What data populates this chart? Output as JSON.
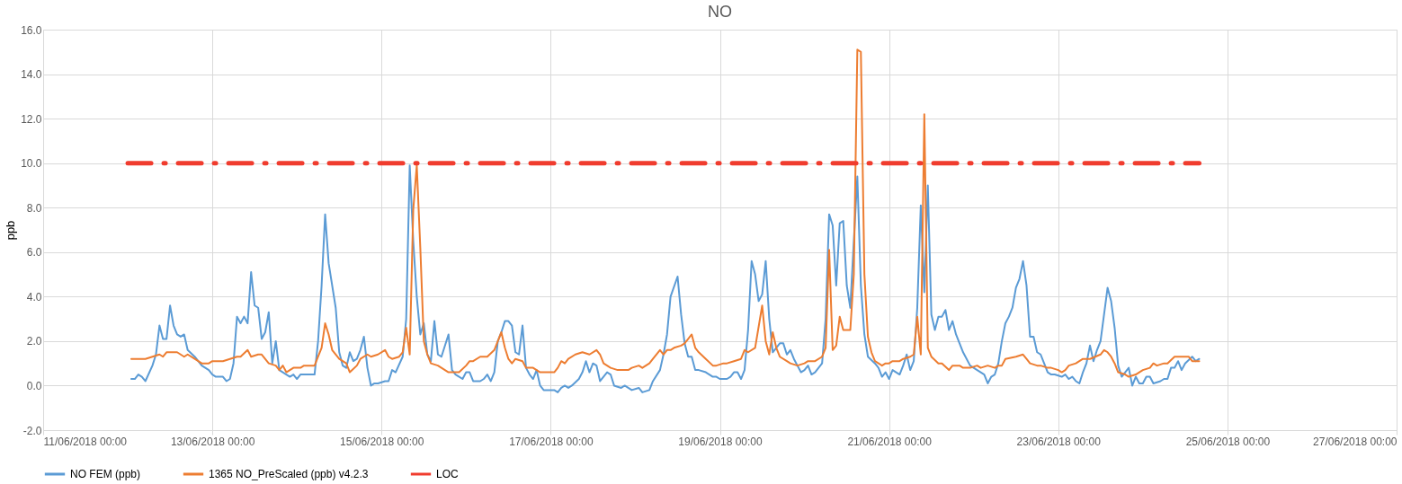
{
  "chart_data": {
    "type": "line",
    "title": "NO",
    "ylabel": "ppb",
    "ylim": [
      -2,
      16
    ],
    "yticks": [
      {
        "value": -2,
        "label": "-2.0"
      },
      {
        "value": 0,
        "label": "0.0"
      },
      {
        "value": 2,
        "label": "2.0"
      },
      {
        "value": 4,
        "label": "4.0"
      },
      {
        "value": 6,
        "label": "6.0"
      },
      {
        "value": 8,
        "label": "8.0"
      },
      {
        "value": 10,
        "label": "10.0"
      },
      {
        "value": 12,
        "label": "12.0"
      },
      {
        "value": 14,
        "label": "14.0"
      },
      {
        "value": 16,
        "label": "16.0"
      }
    ],
    "xlim": [
      "2018-06-11T00:00",
      "2018-06-27T00:00"
    ],
    "xticks": [
      {
        "value": "2018-06-11T00:00",
        "label": "11/06/2018 00:00"
      },
      {
        "value": "2018-06-13T00:00",
        "label": "13/06/2018 00:00"
      },
      {
        "value": "2018-06-15T00:00",
        "label": "15/06/2018 00:00"
      },
      {
        "value": "2018-06-17T00:00",
        "label": "17/06/2018 00:00"
      },
      {
        "value": "2018-06-19T00:00",
        "label": "19/06/2018 00:00"
      },
      {
        "value": "2018-06-21T00:00",
        "label": "21/06/2018 00:00"
      },
      {
        "value": "2018-06-23T00:00",
        "label": "23/06/2018 00:00"
      },
      {
        "value": "2018-06-25T00:00",
        "label": "25/06/2018 00:00"
      },
      {
        "value": "2018-06-27T00:00",
        "label": "27/06/2018 00:00"
      }
    ],
    "grid": true,
    "legend": "bottom",
    "marker": "none",
    "series": [
      {
        "name": "NO FEM (ppb)",
        "color": "#5b9bd5",
        "line_style": "solid",
        "x": [
          "2018-06-12T01:00",
          "2018-06-12T02:00",
          "2018-06-12T03:00",
          "2018-06-12T04:00",
          "2018-06-12T05:00",
          "2018-06-12T07:00",
          "2018-06-12T08:00",
          "2018-06-12T09:00",
          "2018-06-12T10:00",
          "2018-06-12T11:00",
          "2018-06-12T12:00",
          "2018-06-12T13:00",
          "2018-06-12T14:00",
          "2018-06-12T15:00",
          "2018-06-12T16:00",
          "2018-06-12T17:00",
          "2018-06-12T19:00",
          "2018-06-12T21:00",
          "2018-06-12T23:00",
          "2018-06-13T00:00",
          "2018-06-13T01:00",
          "2018-06-13T03:00",
          "2018-06-13T04:00",
          "2018-06-13T05:00",
          "2018-06-13T06:00",
          "2018-06-13T07:00",
          "2018-06-13T08:00",
          "2018-06-13T09:00",
          "2018-06-13T10:00",
          "2018-06-13T11:00",
          "2018-06-13T12:00",
          "2018-06-13T13:00",
          "2018-06-13T14:00",
          "2018-06-13T15:00",
          "2018-06-13T16:00",
          "2018-06-13T17:00",
          "2018-06-13T18:00",
          "2018-06-13T19:00",
          "2018-06-13T20:00",
          "2018-06-13T22:00",
          "2018-06-13T23:00",
          "2018-06-14T00:00",
          "2018-06-14T01:00",
          "2018-06-14T03:00",
          "2018-06-14T05:00",
          "2018-06-14T06:00",
          "2018-06-14T07:00",
          "2018-06-14T08:00",
          "2018-06-14T09:00",
          "2018-06-14T11:00",
          "2018-06-14T12:00",
          "2018-06-14T13:00",
          "2018-06-14T14:00",
          "2018-06-14T15:00",
          "2018-06-14T16:00",
          "2018-06-14T17:00",
          "2018-06-14T18:00",
          "2018-06-14T19:00",
          "2018-06-14T20:00",
          "2018-06-14T21:00",
          "2018-06-14T22:00",
          "2018-06-14T23:00",
          "2018-06-15T01:00",
          "2018-06-15T02:00",
          "2018-06-15T03:00",
          "2018-06-15T04:00",
          "2018-06-15T06:00",
          "2018-06-15T07:00",
          "2018-06-15T08:00",
          "2018-06-15T09:00",
          "2018-06-15T10:00",
          "2018-06-15T11:00",
          "2018-06-15T12:00",
          "2018-06-15T13:00",
          "2018-06-15T14:00",
          "2018-06-15T15:00",
          "2018-06-15T16:00",
          "2018-06-15T17:00",
          "2018-06-15T19:00",
          "2018-06-15T20:00",
          "2018-06-15T21:00",
          "2018-06-15T23:00",
          "2018-06-16T00:00",
          "2018-06-16T01:00",
          "2018-06-16T02:00",
          "2018-06-16T04:00",
          "2018-06-16T05:00",
          "2018-06-16T06:00",
          "2018-06-16T07:00",
          "2018-06-16T08:00",
          "2018-06-16T09:00",
          "2018-06-16T10:00",
          "2018-06-16T11:00",
          "2018-06-16T12:00",
          "2018-06-16T13:00",
          "2018-06-16T14:00",
          "2018-06-16T15:00",
          "2018-06-16T16:00",
          "2018-06-16T17:00",
          "2018-06-16T18:00",
          "2018-06-16T19:00",
          "2018-06-16T20:00",
          "2018-06-16T21:00",
          "2018-06-16T22:00",
          "2018-06-16T23:00",
          "2018-06-17T01:00",
          "2018-06-17T02:00",
          "2018-06-17T03:00",
          "2018-06-17T04:00",
          "2018-06-17T05:00",
          "2018-06-17T06:00",
          "2018-06-17T08:00",
          "2018-06-17T09:00",
          "2018-06-17T10:00",
          "2018-06-17T11:00",
          "2018-06-17T12:00",
          "2018-06-17T13:00",
          "2018-06-17T14:00",
          "2018-06-17T16:00",
          "2018-06-17T17:00",
          "2018-06-17T18:00",
          "2018-06-17T20:00",
          "2018-06-17T21:00",
          "2018-06-17T23:00",
          "2018-06-18T01:00",
          "2018-06-18T02:00",
          "2018-06-18T04:00",
          "2018-06-18T05:00",
          "2018-06-18T07:00",
          "2018-06-18T08:00",
          "2018-06-18T09:00",
          "2018-06-18T10:00",
          "2018-06-18T12:00",
          "2018-06-18T13:00",
          "2018-06-18T14:00",
          "2018-06-18T15:00",
          "2018-06-18T16:00",
          "2018-06-18T17:00",
          "2018-06-18T18:00",
          "2018-06-18T20:00",
          "2018-06-18T22:00",
          "2018-06-18T23:00",
          "2018-06-19T00:00",
          "2018-06-19T02:00",
          "2018-06-19T03:00",
          "2018-06-19T04:00",
          "2018-06-19T05:00",
          "2018-06-19T06:00",
          "2018-06-19T07:00",
          "2018-06-19T08:00",
          "2018-06-19T09:00",
          "2018-06-19T10:00",
          "2018-06-19T11:00",
          "2018-06-19T12:00",
          "2018-06-19T13:00",
          "2018-06-19T14:00",
          "2018-06-19T15:00",
          "2018-06-19T16:00",
          "2018-06-19T17:00",
          "2018-06-19T18:00",
          "2018-06-19T19:00",
          "2018-06-19T20:00",
          "2018-06-19T21:00",
          "2018-06-19T22:00",
          "2018-06-19T23:00",
          "2018-06-20T00:00",
          "2018-06-20T01:00",
          "2018-06-20T02:00",
          "2018-06-20T03:00",
          "2018-06-20T04:00",
          "2018-06-20T05:00",
          "2018-06-20T06:00",
          "2018-06-20T07:00",
          "2018-06-20T08:00",
          "2018-06-20T09:00",
          "2018-06-20T10:00",
          "2018-06-20T11:00",
          "2018-06-20T12:00",
          "2018-06-20T13:00",
          "2018-06-20T14:00",
          "2018-06-20T15:00",
          "2018-06-20T16:00",
          "2018-06-20T17:00",
          "2018-06-20T18:00",
          "2018-06-20T20:00",
          "2018-06-20T21:00",
          "2018-06-20T22:00",
          "2018-06-20T23:00",
          "2018-06-21T00:00",
          "2018-06-21T01:00",
          "2018-06-21T02:00",
          "2018-06-21T03:00",
          "2018-06-21T04:00",
          "2018-06-21T05:00",
          "2018-06-21T06:00",
          "2018-06-21T07:00",
          "2018-06-21T08:00",
          "2018-06-21T09:00",
          "2018-06-21T10:00",
          "2018-06-21T11:00",
          "2018-06-21T12:00",
          "2018-06-21T13:00",
          "2018-06-21T14:00",
          "2018-06-21T15:00",
          "2018-06-21T16:00",
          "2018-06-21T17:00",
          "2018-06-21T18:00",
          "2018-06-21T19:00",
          "2018-06-21T20:00",
          "2018-06-21T21:00",
          "2018-06-21T23:00",
          "2018-06-22T00:00",
          "2018-06-22T02:00",
          "2018-06-22T03:00",
          "2018-06-22T04:00",
          "2018-06-22T05:00",
          "2018-06-22T06:00",
          "2018-06-22T07:00",
          "2018-06-22T08:00",
          "2018-06-22T09:00",
          "2018-06-22T10:00",
          "2018-06-22T11:00",
          "2018-06-22T12:00",
          "2018-06-22T13:00",
          "2018-06-22T14:00",
          "2018-06-22T15:00",
          "2018-06-22T16:00",
          "2018-06-22T17:00",
          "2018-06-22T18:00",
          "2018-06-22T19:00",
          "2018-06-22T20:00",
          "2018-06-22T21:00",
          "2018-06-22T22:00",
          "2018-06-22T23:00",
          "2018-06-23T01:00",
          "2018-06-23T02:00",
          "2018-06-23T03:00",
          "2018-06-23T04:00",
          "2018-06-23T05:00",
          "2018-06-23T06:00",
          "2018-06-23T07:00",
          "2018-06-23T08:00",
          "2018-06-23T09:00",
          "2018-06-23T10:00",
          "2018-06-23T11:00",
          "2018-06-23T12:00",
          "2018-06-23T14:00",
          "2018-06-23T15:00",
          "2018-06-23T16:00",
          "2018-06-23T17:00",
          "2018-06-23T18:00",
          "2018-06-23T19:00",
          "2018-06-23T20:00",
          "2018-06-23T21:00",
          "2018-06-23T22:00",
          "2018-06-23T23:00",
          "2018-06-24T00:00",
          "2018-06-24T01:00",
          "2018-06-24T02:00",
          "2018-06-24T03:00",
          "2018-06-24T05:00",
          "2018-06-24T06:00",
          "2018-06-24T07:00",
          "2018-06-24T08:00",
          "2018-06-24T09:00",
          "2018-06-24T10:00",
          "2018-06-24T11:00",
          "2018-06-24T12:00",
          "2018-06-24T14:00",
          "2018-06-24T15:00",
          "2018-06-24T16:00"
        ],
        "values": [
          0.3,
          0.3,
          0.5,
          0.4,
          0.2,
          0.9,
          1.4,
          2.7,
          2.1,
          2.1,
          3.6,
          2.7,
          2.3,
          2.2,
          2.3,
          1.6,
          1.3,
          0.9,
          0.7,
          0.5,
          0.4,
          0.4,
          0.2,
          0.3,
          1.0,
          3.1,
          2.8,
          3.1,
          2.8,
          5.1,
          3.6,
          3.5,
          2.1,
          2.4,
          3.3,
          1.0,
          2.0,
          0.7,
          0.6,
          0.4,
          0.5,
          0.3,
          0.5,
          0.5,
          0.5,
          2.0,
          4.5,
          7.7,
          5.5,
          3.5,
          1.5,
          0.9,
          0.8,
          1.5,
          1.1,
          1.2,
          1.6,
          2.2,
          0.8,
          0.0,
          0.1,
          0.1,
          0.2,
          0.2,
          0.7,
          0.6,
          1.3,
          3.0,
          9.9,
          6.5,
          4.0,
          2.3,
          2.8,
          1.4,
          1.1,
          2.9,
          1.4,
          1.3,
          2.3,
          0.7,
          0.5,
          0.3,
          0.6,
          0.6,
          0.2,
          0.2,
          0.3,
          0.5,
          0.2,
          0.6,
          2.0,
          2.4,
          2.9,
          2.9,
          2.7,
          1.5,
          1.4,
          2.7,
          0.8,
          0.5,
          0.3,
          0.7,
          0.0,
          -0.2,
          -0.2,
          -0.2,
          -0.3,
          -0.1,
          0.0,
          -0.1,
          0.0,
          0.3,
          0.6,
          1.1,
          0.6,
          1.0,
          0.9,
          0.2,
          0.6,
          0.5,
          0.0,
          -0.1,
          0.0,
          -0.2,
          -0.1,
          -0.3,
          -0.2,
          0.2,
          0.7,
          1.4,
          2.3,
          4.0,
          4.9,
          3.2,
          1.9,
          1.3,
          1.3,
          0.7,
          0.7,
          0.6,
          0.4,
          0.4,
          0.3,
          0.3,
          0.4,
          0.6,
          0.6,
          0.3,
          0.7,
          2.5,
          5.6,
          5.0,
          3.8,
          4.1,
          5.6,
          3.0,
          1.5,
          1.7,
          1.9,
          1.9,
          1.4,
          1.6,
          1.2,
          0.9,
          0.6,
          0.7,
          0.9,
          0.5,
          0.6,
          0.8,
          1.0,
          3.0,
          7.7,
          7.2,
          4.5,
          7.3,
          7.4,
          4.5,
          3.5,
          6.5,
          9.4,
          4.5,
          2.3,
          1.3,
          1.0,
          0.8,
          0.4,
          0.6,
          0.3,
          0.7,
          0.6,
          0.5,
          0.9,
          1.4,
          0.7,
          1.1,
          3.5,
          8.1,
          4.2,
          9.0,
          3.2,
          2.5,
          3.1,
          3.1,
          3.4,
          2.5,
          2.9,
          2.3,
          1.9,
          1.5,
          0.9,
          0.8,
          0.6,
          0.5,
          0.1,
          0.4,
          0.5,
          1.0,
          2.0,
          2.8,
          3.1,
          3.5,
          4.4,
          4.8,
          5.6,
          4.5,
          2.2,
          2.2,
          1.5,
          1.4,
          1.0,
          0.6,
          0.5,
          0.5,
          0.4,
          0.5,
          0.3,
          0.4,
          0.2,
          0.1,
          0.6,
          1.0,
          1.8,
          1.1,
          1.6,
          2.0,
          4.4,
          3.8,
          2.6,
          0.9,
          0.4,
          0.6,
          0.8,
          0.0,
          0.4,
          0.1,
          0.1,
          0.4,
          0.4,
          0.1,
          0.2,
          0.3,
          0.3,
          0.8,
          0.8,
          1.1,
          0.7,
          1.0,
          1.3,
          1.1,
          1.2
        ]
      },
      {
        "name": "1365 NO_PreScaled (ppb) v4.2.3",
        "color": "#ed7d31",
        "line_style": "solid",
        "x": [
          "2018-06-12T01:00",
          "2018-06-12T03:00",
          "2018-06-12T05:00",
          "2018-06-12T07:00",
          "2018-06-12T09:00",
          "2018-06-12T10:00",
          "2018-06-12T11:00",
          "2018-06-12T14:00",
          "2018-06-12T16:00",
          "2018-06-12T17:00",
          "2018-06-12T19:00",
          "2018-06-12T21:00",
          "2018-06-12T23:00",
          "2018-06-13T00:00",
          "2018-06-13T01:00",
          "2018-06-13T02:00",
          "2018-06-13T03:00",
          "2018-06-13T05:00",
          "2018-06-13T07:00",
          "2018-06-13T08:00",
          "2018-06-13T10:00",
          "2018-06-13T11:00",
          "2018-06-13T13:00",
          "2018-06-13T14:00",
          "2018-06-13T16:00",
          "2018-06-13T18:00",
          "2018-06-13T19:00",
          "2018-06-13T20:00",
          "2018-06-13T21:00",
          "2018-06-13T23:00",
          "2018-06-14T01:00",
          "2018-06-14T02:00",
          "2018-06-14T05:00",
          "2018-06-14T06:00",
          "2018-06-14T07:00",
          "2018-06-14T08:00",
          "2018-06-14T09:00",
          "2018-06-14T10:00",
          "2018-06-14T12:00",
          "2018-06-14T13:00",
          "2018-06-14T14:00",
          "2018-06-14T15:00",
          "2018-06-14T17:00",
          "2018-06-14T18:00",
          "2018-06-14T20:00",
          "2018-06-14T21:00",
          "2018-06-14T23:00",
          "2018-06-15T01:00",
          "2018-06-15T02:00",
          "2018-06-15T03:00",
          "2018-06-15T05:00",
          "2018-06-15T06:00",
          "2018-06-15T07:00",
          "2018-06-15T08:00",
          "2018-06-15T09:00",
          "2018-06-15T10:00",
          "2018-06-15T11:00",
          "2018-06-15T12:00",
          "2018-06-15T13:00",
          "2018-06-15T14:00",
          "2018-06-15T16:00",
          "2018-06-15T17:00",
          "2018-06-15T19:00",
          "2018-06-15T21:00",
          "2018-06-15T22:00",
          "2018-06-16T00:00",
          "2018-06-16T01:00",
          "2018-06-16T02:00",
          "2018-06-16T04:00",
          "2018-06-16T06:00",
          "2018-06-16T08:00",
          "2018-06-16T09:00",
          "2018-06-16T10:00",
          "2018-06-16T11:00",
          "2018-06-16T12:00",
          "2018-06-16T13:00",
          "2018-06-16T14:00",
          "2018-06-16T16:00",
          "2018-06-16T17:00",
          "2018-06-16T19:00",
          "2018-06-16T20:00",
          "2018-06-16T21:00",
          "2018-06-16T23:00",
          "2018-06-17T01:00",
          "2018-06-17T02:00",
          "2018-06-17T03:00",
          "2018-06-17T04:00",
          "2018-06-17T05:00",
          "2018-06-17T07:00",
          "2018-06-17T09:00",
          "2018-06-17T11:00",
          "2018-06-17T13:00",
          "2018-06-17T14:00",
          "2018-06-17T15:00",
          "2018-06-17T17:00",
          "2018-06-17T19:00",
          "2018-06-17T20:00",
          "2018-06-17T22:00",
          "2018-06-17T23:00",
          "2018-06-18T01:00",
          "2018-06-18T02:00",
          "2018-06-18T04:00",
          "2018-06-18T05:00",
          "2018-06-18T07:00",
          "2018-06-18T08:00",
          "2018-06-18T09:00",
          "2018-06-18T10:00",
          "2018-06-18T11:00",
          "2018-06-18T13:00",
          "2018-06-18T14:00",
          "2018-06-18T16:00",
          "2018-06-18T17:00",
          "2018-06-18T18:00",
          "2018-06-18T20:00",
          "2018-06-18T22:00",
          "2018-06-18T23:00",
          "2018-06-19T01:00",
          "2018-06-19T02:00",
          "2018-06-19T04:00",
          "2018-06-19T06:00",
          "2018-06-19T07:00",
          "2018-06-19T08:00",
          "2018-06-19T10:00",
          "2018-06-19T12:00",
          "2018-06-19T13:00",
          "2018-06-19T14:00",
          "2018-06-19T15:00",
          "2018-06-19T16:00",
          "2018-06-19T17:00",
          "2018-06-19T19:00",
          "2018-06-19T20:00",
          "2018-06-19T22:00",
          "2018-06-20T00:00",
          "2018-06-20T01:00",
          "2018-06-20T03:00",
          "2018-06-20T05:00",
          "2018-06-20T06:00",
          "2018-06-20T07:00",
          "2018-06-20T08:00",
          "2018-06-20T09:00",
          "2018-06-20T10:00",
          "2018-06-20T11:00",
          "2018-06-20T12:00",
          "2018-06-20T13:00",
          "2018-06-20T14:00",
          "2018-06-20T15:00",
          "2018-06-20T16:00",
          "2018-06-20T17:00",
          "2018-06-20T18:00",
          "2018-06-20T19:00",
          "2018-06-20T20:00",
          "2018-06-20T21:00",
          "2018-06-20T22:00",
          "2018-06-20T23:00",
          "2018-06-21T00:00",
          "2018-06-21T01:00",
          "2018-06-21T03:00",
          "2018-06-21T04:00",
          "2018-06-21T06:00",
          "2018-06-21T07:00",
          "2018-06-21T08:00",
          "2018-06-21T09:00",
          "2018-06-21T10:00",
          "2018-06-21T11:00",
          "2018-06-21T12:00",
          "2018-06-21T14:00",
          "2018-06-21T15:00",
          "2018-06-21T17:00",
          "2018-06-21T18:00",
          "2018-06-21T20:00",
          "2018-06-21T21:00",
          "2018-06-21T23:00",
          "2018-06-22T01:00",
          "2018-06-22T02:00",
          "2018-06-22T04:00",
          "2018-06-22T06:00",
          "2018-06-22T07:00",
          "2018-06-22T08:00",
          "2018-06-22T09:00",
          "2018-06-22T12:00",
          "2018-06-22T14:00",
          "2018-06-22T15:00",
          "2018-06-22T16:00",
          "2018-06-22T18:00",
          "2018-06-22T19:00",
          "2018-06-22T21:00",
          "2018-06-22T22:00",
          "2018-06-23T00:00",
          "2018-06-23T01:00",
          "2018-06-23T02:00",
          "2018-06-23T03:00",
          "2018-06-23T05:00",
          "2018-06-23T07:00",
          "2018-06-23T09:00",
          "2018-06-23T12:00",
          "2018-06-23T13:00",
          "2018-06-23T14:00",
          "2018-06-23T15:00",
          "2018-06-23T16:00",
          "2018-06-23T17:00",
          "2018-06-23T19:00",
          "2018-06-23T20:00",
          "2018-06-23T22:00",
          "2018-06-24T00:00",
          "2018-06-24T02:00",
          "2018-06-24T03:00",
          "2018-06-24T04:00",
          "2018-06-24T06:00",
          "2018-06-24T07:00",
          "2018-06-24T09:00",
          "2018-06-24T11:00",
          "2018-06-24T13:00",
          "2018-06-24T14:00",
          "2018-06-24T16:00"
        ],
        "values": [
          1.2,
          1.2,
          1.2,
          1.3,
          1.4,
          1.3,
          1.5,
          1.5,
          1.3,
          1.4,
          1.2,
          1.0,
          1.0,
          1.1,
          1.1,
          1.1,
          1.1,
          1.2,
          1.3,
          1.3,
          1.6,
          1.3,
          1.4,
          1.4,
          1.0,
          0.9,
          0.7,
          0.9,
          0.6,
          0.8,
          0.8,
          0.9,
          0.9,
          1.3,
          1.7,
          2.8,
          2.3,
          1.6,
          1.2,
          1.1,
          1.0,
          0.6,
          0.9,
          1.2,
          1.4,
          1.3,
          1.4,
          1.6,
          1.3,
          1.2,
          1.3,
          1.5,
          2.6,
          1.4,
          7.9,
          9.9,
          6.2,
          2.0,
          1.4,
          1.0,
          0.9,
          0.8,
          0.6,
          0.6,
          0.6,
          0.9,
          1.1,
          1.1,
          1.3,
          1.3,
          1.6,
          2.0,
          2.4,
          1.7,
          1.2,
          1.0,
          1.2,
          1.1,
          0.8,
          0.8,
          0.7,
          0.6,
          0.6,
          0.6,
          0.8,
          1.1,
          1.0,
          1.2,
          1.4,
          1.5,
          1.4,
          1.6,
          1.4,
          1.0,
          0.8,
          0.7,
          0.7,
          0.7,
          0.8,
          0.9,
          0.8,
          1.0,
          1.2,
          1.6,
          1.4,
          1.6,
          1.6,
          1.7,
          1.8,
          1.9,
          2.3,
          1.7,
          1.5,
          1.2,
          0.9,
          0.9,
          1.0,
          1.0,
          1.1,
          1.2,
          1.6,
          1.5,
          1.7,
          3.6,
          2.0,
          1.4,
          2.4,
          1.7,
          1.3,
          1.1,
          1.0,
          0.9,
          1.0,
          1.1,
          1.1,
          1.3,
          1.7,
          6.1,
          1.6,
          1.8,
          3.1,
          2.5,
          2.5,
          2.5,
          5.0,
          15.1,
          15.0,
          5.0,
          2.2,
          1.5,
          1.1,
          1.0,
          0.9,
          1.0,
          1.0,
          1.1,
          1.1,
          1.2,
          1.3,
          1.4,
          3.1,
          1.4,
          12.2,
          1.7,
          1.3,
          1.0,
          1.0,
          0.7,
          0.9,
          0.9,
          0.8,
          0.8,
          0.9,
          0.8,
          0.9,
          0.8,
          0.9,
          0.9,
          1.2,
          1.3,
          1.4,
          1.2,
          1.0,
          0.9,
          0.9,
          0.8,
          0.8,
          0.7,
          0.6,
          0.7,
          0.9,
          1.0,
          1.2,
          1.2,
          1.4,
          1.6,
          1.5,
          1.3,
          1.0,
          0.6,
          0.5,
          0.4,
          0.5,
          0.7,
          0.8,
          1.0,
          0.9,
          1.0,
          1.0,
          1.3,
          1.3,
          1.3,
          1.1,
          1.1
        ]
      },
      {
        "name": "LOC",
        "color": "#f03c2e",
        "line_style": "dashed",
        "x": [
          "2018-06-12T00:00",
          "2018-06-24T16:00"
        ],
        "values": [
          10,
          10
        ]
      }
    ]
  }
}
